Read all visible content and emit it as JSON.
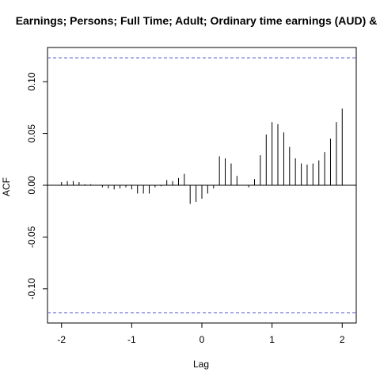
{
  "chart_data": {
    "type": "bar",
    "title": "Earnings; Persons; Full Time; Adult; Ordinary time earnings (AUD) & N",
    "xlabel": "Lag",
    "ylabel": "ACF",
    "xlim": [
      -2.2,
      2.2
    ],
    "ylim": [
      -0.133,
      0.133
    ],
    "x_ticks": [
      -2,
      -1,
      0,
      1,
      2
    ],
    "x_tick_labels": [
      "-2",
      "-1",
      "0",
      "1",
      "2"
    ],
    "y_ticks": [
      -0.1,
      -0.05,
      0.0,
      0.05,
      0.1
    ],
    "y_tick_labels": [
      "-0.10",
      "-0.05",
      "0.00",
      "0.05",
      "0.10"
    ],
    "confidence_bounds": [
      0.123,
      -0.123
    ],
    "confidence_color": "#6b6bd6",
    "bar_color": "#000000",
    "grid": false,
    "lags": [
      -2.0,
      -1.917,
      -1.833,
      -1.75,
      -1.667,
      -1.583,
      -1.5,
      -1.417,
      -1.333,
      -1.25,
      -1.167,
      -1.083,
      -1.0,
      -0.917,
      -0.833,
      -0.75,
      -0.667,
      -0.583,
      -0.5,
      -0.417,
      -0.333,
      -0.25,
      -0.167,
      -0.083,
      0.0,
      0.083,
      0.167,
      0.25,
      0.333,
      0.417,
      0.5,
      0.583,
      0.667,
      0.75,
      0.833,
      0.917,
      1.0,
      1.083,
      1.167,
      1.25,
      1.333,
      1.417,
      1.5,
      1.583,
      1.667,
      1.75,
      1.833,
      1.917,
      2.0
    ],
    "values": [
      0.003,
      0.004,
      0.004,
      0.003,
      0.001,
      0.001,
      0.0,
      -0.002,
      -0.003,
      -0.004,
      -0.003,
      -0.002,
      -0.004,
      -0.008,
      -0.008,
      -0.008,
      -0.002,
      -0.001,
      0.005,
      0.004,
      0.007,
      0.011,
      -0.018,
      -0.016,
      -0.013,
      -0.008,
      -0.003,
      0.028,
      0.026,
      0.021,
      0.009,
      0.0,
      -0.002,
      0.006,
      0.029,
      0.049,
      0.061,
      0.059,
      0.051,
      0.037,
      0.026,
      0.021,
      0.02,
      0.021,
      0.024,
      0.032,
      0.045,
      0.061,
      0.074
    ]
  }
}
